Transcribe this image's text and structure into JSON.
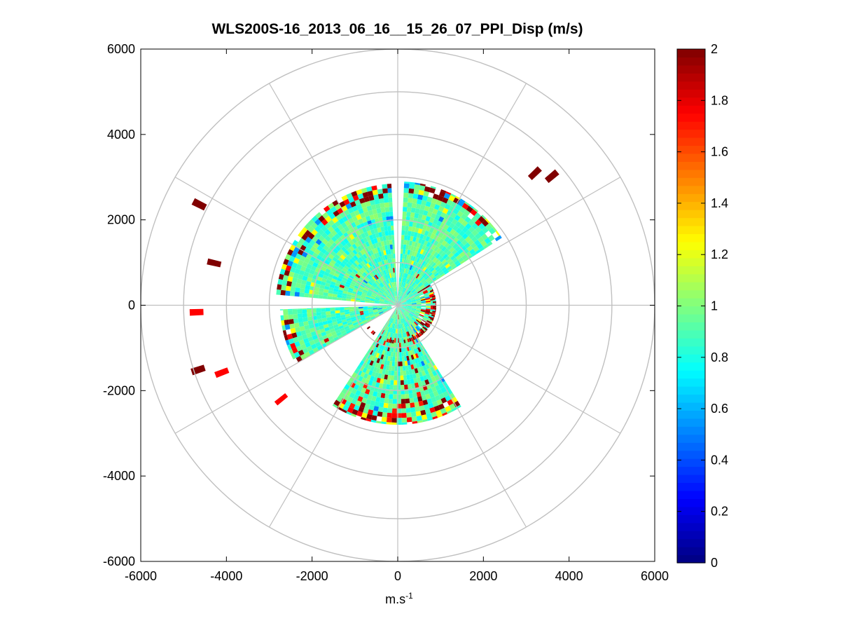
{
  "chart_data": [
    {
      "type": "heatmap",
      "subtype": "polar-ppi",
      "title": "WLS200S-16_2013_06_16__15_26_07_PPI_Disp (m/s)",
      "xlabel": "m.s",
      "xlabel_superscript": "-1",
      "ylabel": "",
      "xlim": [
        -6000,
        6000
      ],
      "ylim": [
        -6000,
        6000
      ],
      "xticks": [
        -6000,
        -4000,
        -2000,
        0,
        2000,
        4000,
        6000
      ],
      "yticks": [
        6000,
        4000,
        2000,
        0,
        -2000,
        -4000,
        -6000
      ],
      "range_rings": [
        1000,
        2000,
        3000,
        4000,
        5000,
        6000
      ],
      "spokes_deg": [
        0,
        30,
        60,
        90,
        120,
        150,
        180,
        210,
        240,
        270,
        300,
        330
      ],
      "grid": true,
      "scan_sectors": [
        {
          "az_start": 275,
          "az_end": 357,
          "r_min": 0,
          "r_max": 2850
        },
        {
          "az_start": 3,
          "az_end": 57,
          "r_min": 0,
          "r_max": 2900
        },
        {
          "az_start": 240,
          "az_end": 268,
          "r_min": 150,
          "r_max": 2750
        },
        {
          "az_start": 148,
          "az_end": 213,
          "r_min": 0,
          "r_max": 2800
        },
        {
          "az_start": 57,
          "az_end": 148,
          "r_min": 0,
          "r_max": 900
        }
      ],
      "typical_value": 0.9,
      "far_returns": [
        {
          "az": 297,
          "r": 5200,
          "value": 2.0
        },
        {
          "az": 283,
          "r": 4400,
          "value": 2.0
        },
        {
          "az": 268,
          "r": 4700,
          "value": 1.75
        },
        {
          "az": 252,
          "r": 4900,
          "value": 2.0
        },
        {
          "az": 249,
          "r": 4400,
          "value": 1.75
        },
        {
          "az": 231,
          "r": 3500,
          "value": 1.75
        },
        {
          "az": 46,
          "r": 4450,
          "value": 2.0
        },
        {
          "az": 50,
          "r": 4700,
          "value": 2.0
        }
      ]
    },
    {
      "type": "colorbar",
      "vmin": 0,
      "vmax": 2,
      "ticks": [
        0,
        0.2,
        0.4,
        0.6,
        0.8,
        1,
        1.2,
        1.4,
        1.6,
        1.8,
        2
      ],
      "tick_labels": [
        "0",
        "0.2",
        "0.4",
        "0.6",
        "0.8",
        "1",
        "1.2",
        "1.4",
        "1.6",
        "1.8",
        "2"
      ],
      "colormap": "jet",
      "levels": 64
    }
  ]
}
